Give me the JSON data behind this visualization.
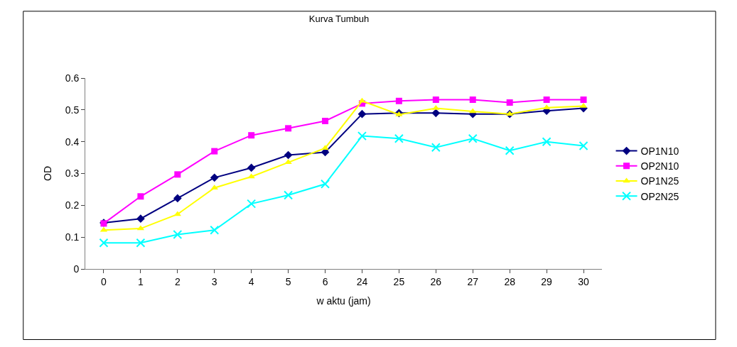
{
  "chart_data": {
    "type": "line",
    "title": "Kurva Tumbuh",
    "xlabel": "w aktu (jam)",
    "ylabel": "OD",
    "categories": [
      "0",
      "1",
      "2",
      "3",
      "4",
      "5",
      "6",
      "24",
      "25",
      "26",
      "27",
      "28",
      "29",
      "30"
    ],
    "ylim": [
      0,
      0.6
    ],
    "yticks": [
      0,
      0.1,
      0.2,
      0.3,
      0.4,
      0.5,
      0.6
    ],
    "grid": false,
    "legend": "right",
    "series": [
      {
        "name": "OP1N10",
        "color": "#000080",
        "marker": "diamond",
        "values": [
          0.145,
          0.158,
          0.222,
          0.287,
          0.318,
          0.358,
          0.367,
          0.487,
          0.49,
          0.49,
          0.487,
          0.487,
          0.497,
          0.505
        ]
      },
      {
        "name": "OP2N10",
        "color": "#ff00ff",
        "marker": "square",
        "values": [
          0.143,
          0.228,
          0.297,
          0.37,
          0.42,
          0.442,
          0.465,
          0.52,
          0.528,
          0.532,
          0.532,
          0.523,
          0.532,
          0.532
        ]
      },
      {
        "name": "OP1N25",
        "color": "#ffff00",
        "marker": "triangle",
        "values": [
          0.122,
          0.127,
          0.172,
          0.255,
          0.29,
          0.335,
          0.38,
          0.528,
          0.485,
          0.505,
          0.495,
          0.487,
          0.507,
          0.512
        ]
      },
      {
        "name": "OP2N25",
        "color": "#00ffff",
        "marker": "cross",
        "values": [
          0.082,
          0.082,
          0.108,
          0.122,
          0.205,
          0.232,
          0.267,
          0.418,
          0.41,
          0.382,
          0.41,
          0.372,
          0.4,
          0.387
        ]
      }
    ]
  }
}
